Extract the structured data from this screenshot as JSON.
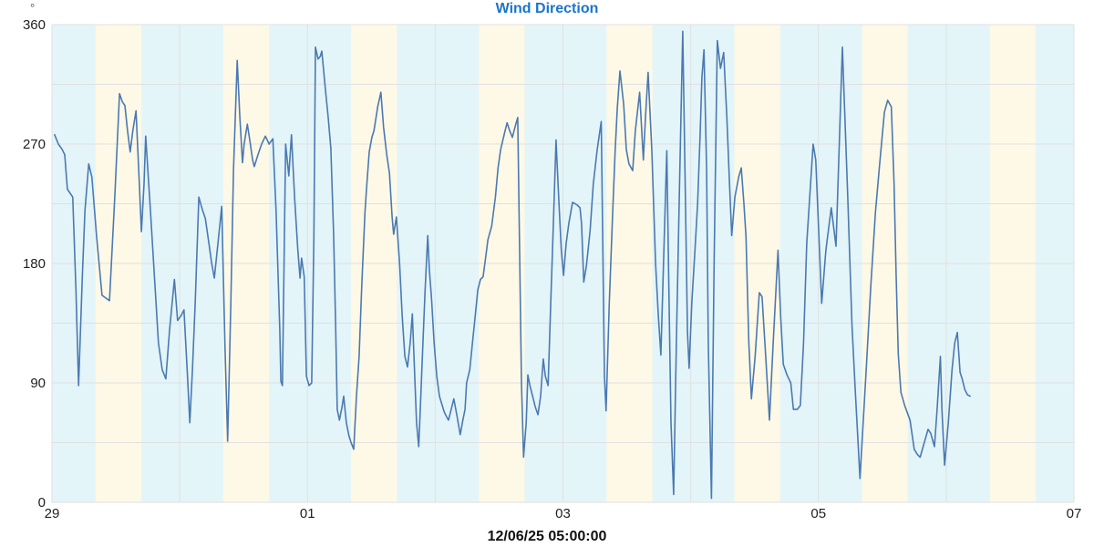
{
  "chart_data": {
    "type": "line",
    "title": "Wind Direction",
    "y_unit": "°",
    "footer_label": "12/06/25 05:00:00",
    "ylim": [
      0,
      360
    ],
    "y_gridline_step": 45,
    "y_label_step": 90,
    "x_domain_hours": [
      0,
      192
    ],
    "x_gridline_every_hours": 24,
    "x_ticks": [
      {
        "hour": 0,
        "label": "29"
      },
      {
        "hour": 48,
        "label": "01"
      },
      {
        "hour": 96,
        "label": "03"
      },
      {
        "hour": 144,
        "label": "05"
      },
      {
        "hour": 192,
        "label": "07"
      }
    ],
    "daylight_band": {
      "start_hour": 8.2,
      "end_hour": 16.8
    },
    "colors": {
      "line": "#4b79b1",
      "title": "#1b74cd",
      "grid": "#e0e0e0",
      "night_band": "#e3f5f9",
      "day_band": "#fdf9e6",
      "axis_text": "#222222",
      "unit_text": "#555555",
      "footer_text": "#111111",
      "background": "#ffffff"
    },
    "legend": "none",
    "series": [
      {
        "name": "Wind Direction",
        "unit": "degrees",
        "points": [
          [
            0.5,
            277
          ],
          [
            1.2,
            270
          ],
          [
            1.9,
            266
          ],
          [
            2.4,
            262
          ],
          [
            2.9,
            236
          ],
          [
            3.9,
            230
          ],
          [
            4.5,
            160
          ],
          [
            5.0,
            88
          ],
          [
            5.7,
            170
          ],
          [
            6.2,
            220
          ],
          [
            6.9,
            255
          ],
          [
            7.5,
            245
          ],
          [
            8.4,
            200
          ],
          [
            9.4,
            156
          ],
          [
            10.8,
            152
          ],
          [
            11.8,
            230
          ],
          [
            12.7,
            308
          ],
          [
            13.2,
            302
          ],
          [
            13.7,
            299
          ],
          [
            14.2,
            280
          ],
          [
            14.7,
            264
          ],
          [
            15.2,
            280
          ],
          [
            15.8,
            295
          ],
          [
            16.3,
            250
          ],
          [
            16.8,
            204
          ],
          [
            17.3,
            240
          ],
          [
            17.6,
            276
          ],
          [
            18.5,
            220
          ],
          [
            19.4,
            160
          ],
          [
            20.0,
            120
          ],
          [
            20.7,
            100
          ],
          [
            21.4,
            93
          ],
          [
            22.1,
            130
          ],
          [
            23.0,
            168
          ],
          [
            23.6,
            137
          ],
          [
            24.3,
            141
          ],
          [
            24.8,
            145
          ],
          [
            25.4,
            100
          ],
          [
            25.9,
            60
          ],
          [
            26.4,
            100
          ],
          [
            26.9,
            150
          ],
          [
            27.6,
            230
          ],
          [
            28.3,
            220
          ],
          [
            28.8,
            214
          ],
          [
            29.5,
            195
          ],
          [
            30.0,
            180
          ],
          [
            30.5,
            169
          ],
          [
            31.2,
            196
          ],
          [
            31.9,
            223
          ],
          [
            32.5,
            117
          ],
          [
            33.0,
            46
          ],
          [
            33.6,
            150
          ],
          [
            34.1,
            250
          ],
          [
            34.8,
            333
          ],
          [
            35.3,
            290
          ],
          [
            35.8,
            256
          ],
          [
            36.1,
            270
          ],
          [
            36.7,
            285
          ],
          [
            37.2,
            272
          ],
          [
            37.7,
            258
          ],
          [
            38.0,
            253
          ],
          [
            38.7,
            262
          ],
          [
            39.4,
            270
          ],
          [
            40.1,
            276
          ],
          [
            40.8,
            270
          ],
          [
            41.5,
            274
          ],
          [
            42.1,
            220
          ],
          [
            42.8,
            130
          ],
          [
            43.0,
            91
          ],
          [
            43.3,
            88
          ],
          [
            43.9,
            270
          ],
          [
            44.5,
            246
          ],
          [
            45.0,
            277
          ],
          [
            45.6,
            229
          ],
          [
            46.2,
            190
          ],
          [
            46.6,
            169
          ],
          [
            46.9,
            184
          ],
          [
            47.4,
            170
          ],
          [
            47.8,
            95
          ],
          [
            48.3,
            88
          ],
          [
            48.8,
            90
          ],
          [
            49.2,
            200
          ],
          [
            49.5,
            343
          ],
          [
            50.0,
            334
          ],
          [
            50.4,
            336
          ],
          [
            50.7,
            340
          ],
          [
            51.4,
            310
          ],
          [
            51.9,
            290
          ],
          [
            52.4,
            267
          ],
          [
            52.9,
            203
          ],
          [
            53.3,
            132
          ],
          [
            53.6,
            70
          ],
          [
            54.0,
            62
          ],
          [
            54.5,
            72
          ],
          [
            54.8,
            80
          ],
          [
            55.3,
            60
          ],
          [
            55.8,
            50
          ],
          [
            56.2,
            45
          ],
          [
            56.7,
            40
          ],
          [
            57.2,
            80
          ],
          [
            57.7,
            110
          ],
          [
            58.2,
            163
          ],
          [
            58.8,
            218
          ],
          [
            59.1,
            237
          ],
          [
            59.6,
            264
          ],
          [
            60.1,
            275
          ],
          [
            60.5,
            280
          ],
          [
            61.2,
            298
          ],
          [
            61.8,
            309
          ],
          [
            62.3,
            283
          ],
          [
            62.9,
            262
          ],
          [
            63.4,
            248
          ],
          [
            63.9,
            215
          ],
          [
            64.2,
            202
          ],
          [
            64.7,
            215
          ],
          [
            65.3,
            180
          ],
          [
            65.8,
            140
          ],
          [
            66.3,
            110
          ],
          [
            66.8,
            102
          ],
          [
            67.3,
            120
          ],
          [
            67.7,
            142
          ],
          [
            68.2,
            90
          ],
          [
            68.5,
            60
          ],
          [
            68.9,
            42
          ],
          [
            69.2,
            70
          ],
          [
            69.7,
            120
          ],
          [
            70.1,
            160
          ],
          [
            70.6,
            201
          ],
          [
            70.9,
            175
          ],
          [
            71.3,
            154
          ],
          [
            71.8,
            120
          ],
          [
            72.3,
            95
          ],
          [
            72.8,
            80
          ],
          [
            73.7,
            68
          ],
          [
            74.2,
            64
          ],
          [
            74.5,
            62
          ],
          [
            75.0,
            70
          ],
          [
            75.5,
            78
          ],
          [
            76.1,
            65
          ],
          [
            76.7,
            51
          ],
          [
            77.2,
            62
          ],
          [
            77.6,
            70
          ],
          [
            77.9,
            90
          ],
          [
            78.5,
            100
          ],
          [
            79.0,
            120
          ],
          [
            79.5,
            140
          ],
          [
            80.0,
            160
          ],
          [
            80.5,
            168
          ],
          [
            81.0,
            170
          ],
          [
            81.5,
            185
          ],
          [
            81.9,
            198
          ],
          [
            82.6,
            208
          ],
          [
            83.3,
            230
          ],
          [
            83.8,
            252
          ],
          [
            84.3,
            266
          ],
          [
            85.0,
            278
          ],
          [
            85.5,
            286
          ],
          [
            86.0,
            280
          ],
          [
            86.5,
            275
          ],
          [
            87.0,
            283
          ],
          [
            87.5,
            290
          ],
          [
            88.2,
            90
          ],
          [
            88.6,
            34
          ],
          [
            89.1,
            60
          ],
          [
            89.4,
            96
          ],
          [
            89.8,
            88
          ],
          [
            90.3,
            80
          ],
          [
            90.8,
            72
          ],
          [
            91.3,
            66
          ],
          [
            91.8,
            80
          ],
          [
            92.3,
            108
          ],
          [
            92.7,
            95
          ],
          [
            93.2,
            88
          ],
          [
            93.7,
            150
          ],
          [
            94.2,
            210
          ],
          [
            94.7,
            273
          ],
          [
            95.2,
            230
          ],
          [
            95.7,
            190
          ],
          [
            96.1,
            171
          ],
          [
            96.6,
            195
          ],
          [
            97.1,
            210
          ],
          [
            97.8,
            226
          ],
          [
            98.3,
            225
          ],
          [
            98.7,
            224
          ],
          [
            99.2,
            222
          ],
          [
            99.5,
            210
          ],
          [
            99.9,
            166
          ],
          [
            100.4,
            178
          ],
          [
            101.1,
            205
          ],
          [
            101.7,
            240
          ],
          [
            102.4,
            265
          ],
          [
            103.2,
            287
          ],
          [
            103.8,
            95
          ],
          [
            104.1,
            69
          ],
          [
            104.7,
            150
          ],
          [
            105.3,
            214
          ],
          [
            105.8,
            264
          ],
          [
            106.2,
            297
          ],
          [
            106.7,
            325
          ],
          [
            107.4,
            300
          ],
          [
            107.9,
            266
          ],
          [
            108.4,
            255
          ],
          [
            109.1,
            250
          ],
          [
            109.6,
            280
          ],
          [
            110.4,
            309
          ],
          [
            111.1,
            258
          ],
          [
            111.5,
            290
          ],
          [
            112.0,
            324
          ],
          [
            112.7,
            265
          ],
          [
            113.4,
            180
          ],
          [
            113.9,
            142
          ],
          [
            114.4,
            111
          ],
          [
            114.9,
            180
          ],
          [
            115.5,
            265
          ],
          [
            115.9,
            160
          ],
          [
            116.3,
            60
          ],
          [
            116.8,
            6
          ],
          [
            117.3,
            120
          ],
          [
            117.9,
            240
          ],
          [
            118.5,
            355
          ],
          [
            119.0,
            230
          ],
          [
            119.4,
            128
          ],
          [
            119.7,
            101
          ],
          [
            120.2,
            150
          ],
          [
            120.8,
            190
          ],
          [
            121.3,
            225
          ],
          [
            121.8,
            280
          ],
          [
            122.1,
            320
          ],
          [
            122.5,
            341
          ],
          [
            123.0,
            250
          ],
          [
            123.3,
            120
          ],
          [
            123.9,
            3
          ],
          [
            124.4,
            180
          ],
          [
            125.0,
            348
          ],
          [
            125.6,
            327
          ],
          [
            126.2,
            339
          ],
          [
            126.8,
            290
          ],
          [
            127.3,
            240
          ],
          [
            127.7,
            201
          ],
          [
            128.3,
            230
          ],
          [
            129.0,
            245
          ],
          [
            129.5,
            252
          ],
          [
            130.0,
            225
          ],
          [
            130.4,
            200
          ],
          [
            130.9,
            122
          ],
          [
            131.4,
            78
          ],
          [
            132.1,
            110
          ],
          [
            132.9,
            158
          ],
          [
            133.4,
            155
          ],
          [
            134.1,
            110
          ],
          [
            134.8,
            62
          ],
          [
            135.5,
            120
          ],
          [
            136.4,
            190
          ],
          [
            136.9,
            140
          ],
          [
            137.4,
            104
          ],
          [
            138.1,
            96
          ],
          [
            138.8,
            90
          ],
          [
            139.3,
            70
          ],
          [
            140.0,
            70
          ],
          [
            140.6,
            73
          ],
          [
            141.2,
            120
          ],
          [
            141.8,
            195
          ],
          [
            143.0,
            270
          ],
          [
            143.5,
            258
          ],
          [
            144.6,
            150
          ],
          [
            145.4,
            190
          ],
          [
            146.4,
            222
          ],
          [
            147.3,
            193
          ],
          [
            148.5,
            343
          ],
          [
            149.5,
            230
          ],
          [
            150.3,
            134
          ],
          [
            150.9,
            86
          ],
          [
            151.8,
            18
          ],
          [
            153.0,
            102
          ],
          [
            153.8,
            161
          ],
          [
            154.7,
            218
          ],
          [
            155.5,
            255
          ],
          [
            156.4,
            294
          ],
          [
            157.0,
            303
          ],
          [
            157.7,
            298
          ],
          [
            158.2,
            240
          ],
          [
            158.6,
            170
          ],
          [
            159.0,
            112
          ],
          [
            159.5,
            83
          ],
          [
            160.2,
            73
          ],
          [
            161.2,
            62
          ],
          [
            162.0,
            40
          ],
          [
            162.6,
            36
          ],
          [
            163.1,
            34
          ],
          [
            163.8,
            44
          ],
          [
            164.6,
            55
          ],
          [
            165.1,
            52
          ],
          [
            165.8,
            42
          ],
          [
            166.3,
            70
          ],
          [
            166.9,
            110
          ],
          [
            167.2,
            70
          ],
          [
            167.7,
            28
          ],
          [
            168.4,
            60
          ],
          [
            169.1,
            100
          ],
          [
            169.6,
            120
          ],
          [
            170.1,
            128
          ],
          [
            170.6,
            98
          ],
          [
            171.0,
            93
          ],
          [
            171.5,
            85
          ],
          [
            172.0,
            81
          ],
          [
            172.5,
            80
          ]
        ]
      }
    ]
  }
}
